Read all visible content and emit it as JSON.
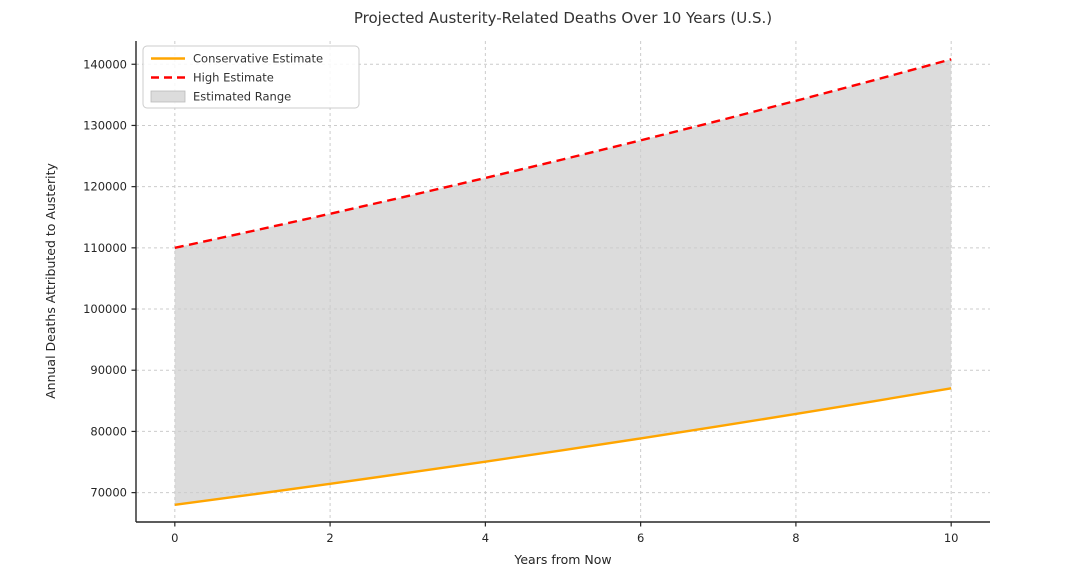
{
  "chart_data": {
    "type": "line",
    "title": "Projected Austerity-Related Deaths Over 10 Years (U.S.)",
    "xlabel": "Years from Now",
    "ylabel": "Annual Deaths Attributed to Austerity",
    "x": [
      0,
      1,
      2,
      3,
      4,
      5,
      6,
      7,
      8,
      9,
      10
    ],
    "series": [
      {
        "name": "Conservative Estimate",
        "color": "#FFA500",
        "style": "solid",
        "values": [
          68000,
          69700,
          71443,
          73229,
          75059,
          76936,
          78859,
          80831,
          82852,
          84923,
          87046
        ]
      },
      {
        "name": "High Estimate",
        "color": "#FF0000",
        "style": "dashed",
        "values": [
          110000,
          112750,
          115569,
          118458,
          121419,
          124455,
          127566,
          130755,
          134024,
          137375,
          140809
        ]
      }
    ],
    "range_fill": {
      "name": "Estimated Range",
      "color": "#DCDCDC",
      "upper": "High Estimate",
      "lower": "Conservative Estimate"
    },
    "xticks": [
      0,
      2,
      4,
      6,
      8,
      10
    ],
    "yticks": [
      70000,
      80000,
      90000,
      100000,
      110000,
      120000,
      130000,
      140000
    ],
    "xlim": [
      -0.5,
      10.5
    ],
    "ylim": [
      65200,
      143800
    ],
    "grid": true,
    "grid_color": "#cccccc",
    "spine_color": "#262626",
    "legend_position": "upper left",
    "legend_border_color": "#cccccc",
    "legend_background": "rgba(255,255,255,0.85)"
  }
}
